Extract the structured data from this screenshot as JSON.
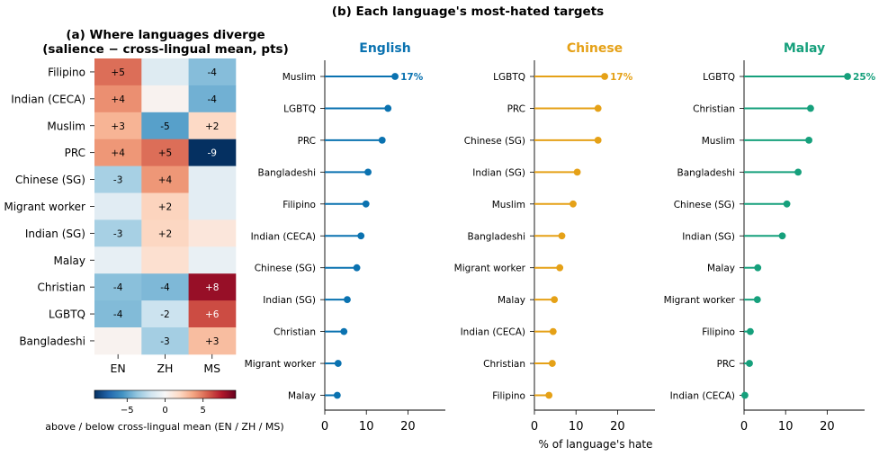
{
  "chart_data": [
    {
      "type": "heatmap",
      "title": "(a) Where languages diverge\n(salience − cross-lingual mean, pts)",
      "rows": [
        "Filipino",
        "Indian (CECA)",
        "Muslim",
        "PRC",
        "Chinese (SG)",
        "Migrant worker",
        "Indian (SG)",
        "Malay",
        "Christian",
        "LGBTQ",
        "Bangladeshi"
      ],
      "columns": [
        "EN",
        "ZH",
        "MS"
      ],
      "values": [
        [
          5.2,
          -1.2,
          -4.0
        ],
        [
          4.3,
          0.3,
          -4.5
        ],
        [
          3.2,
          -5.1,
          1.9
        ],
        [
          4.1,
          5.2,
          -9.3
        ],
        [
          -3.1,
          4.1,
          -1.0
        ],
        [
          -1.1,
          2.1,
          -1.0
        ],
        [
          -3.1,
          2.0,
          1.1
        ],
        [
          -0.8,
          1.5,
          -0.7
        ],
        [
          -3.9,
          -4.2,
          8.1
        ],
        [
          -4.1,
          -2.0,
          6.1
        ],
        [
          0.3,
          -3.2,
          2.9
        ]
      ],
      "cell_labels": [
        [
          "+5",
          "",
          "-4"
        ],
        [
          "+4",
          "",
          "-4"
        ],
        [
          "+3",
          "-5",
          "+2"
        ],
        [
          "+4",
          "+5",
          "-9"
        ],
        [
          "-3",
          "+4",
          ""
        ],
        [
          "",
          "+2",
          ""
        ],
        [
          "-3",
          "+2",
          ""
        ],
        [
          "",
          "",
          ""
        ],
        [
          "-4",
          "-4",
          "+8"
        ],
        [
          "-4",
          "-2",
          "+6"
        ],
        [
          "",
          "-3",
          "+3"
        ]
      ],
      "colormap": "RdBu_r",
      "vmin": -9.3,
      "vmax": 9.3,
      "colorbar_ticks": [
        "−5",
        "0",
        "5"
      ],
      "colorbar_tick_values": [
        -5,
        0,
        5
      ],
      "colorbar_label": "above / below cross-lingual mean (EN / ZH / MS)"
    },
    {
      "type": "lollipop",
      "suptitle": "(b) Each language's most-hated targets",
      "xlabel": "% of language's hate",
      "xlim": [
        0,
        29
      ],
      "xticks": [
        0,
        10,
        20
      ],
      "panels": [
        {
          "title": "English",
          "color": "#0a72b0",
          "categories": [
            "Muslim",
            "LGBTQ",
            "PRC",
            "Bangladeshi",
            "Filipino",
            "Indian (CECA)",
            "Chinese (SG)",
            "Indian (SG)",
            "Christian",
            "Migrant worker",
            "Malay"
          ],
          "values": [
            16.9,
            15.2,
            13.8,
            10.4,
            9.9,
            8.7,
            7.7,
            5.4,
            4.6,
            3.2,
            3.0
          ],
          "top_label": "17%"
        },
        {
          "title": "Chinese",
          "color": "#e5a117",
          "categories": [
            "LGBTQ",
            "PRC",
            "Chinese (SG)",
            "Indian (SG)",
            "Muslim",
            "Bangladeshi",
            "Migrant worker",
            "Malay",
            "Indian (CECA)",
            "Christian",
            "Filipino"
          ],
          "values": [
            16.9,
            15.3,
            15.3,
            10.3,
            9.3,
            6.6,
            6.1,
            4.8,
            4.5,
            4.3,
            3.5
          ],
          "top_label": "17%"
        },
        {
          "title": "Malay",
          "color": "#16a07c",
          "categories": [
            "LGBTQ",
            "Christian",
            "Muslim",
            "Bangladeshi",
            "Chinese (SG)",
            "Indian (SG)",
            "Malay",
            "Migrant worker",
            "Filipino",
            "PRC",
            "Indian (CECA)"
          ],
          "values": [
            24.9,
            16.0,
            15.6,
            13.0,
            10.3,
            9.2,
            3.3,
            3.2,
            1.5,
            1.3,
            0.2
          ],
          "top_label": "25%"
        }
      ]
    }
  ]
}
